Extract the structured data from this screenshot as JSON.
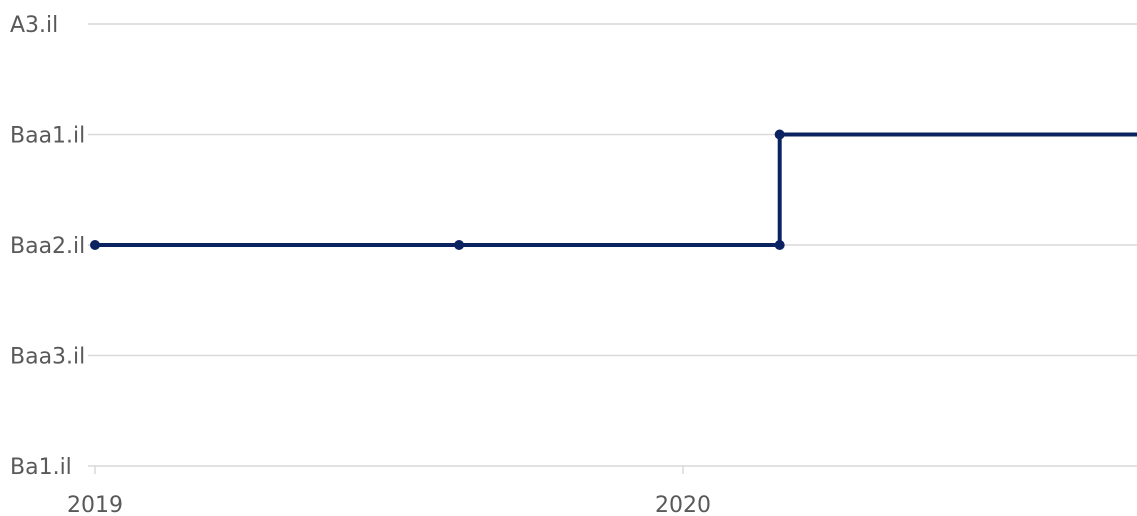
{
  "chart_data": {
    "type": "line",
    "step": true,
    "title": "",
    "xlabel": "",
    "ylabel": "",
    "x_axis_type": "date",
    "xlim": [
      "2019-01-01",
      "2020-11-01"
    ],
    "x_ticks": [
      {
        "value": "2019-01-01",
        "label": "2019"
      },
      {
        "value": "2020-01-01",
        "label": "2020"
      }
    ],
    "y_categories": [
      "Ba1.il",
      "Baa3.il",
      "Baa2.il",
      "Baa1.il",
      "A3.il"
    ],
    "grid": true,
    "legend": "none",
    "series": [
      {
        "color": "#0b2461",
        "points": [
          {
            "x": "2019-01-01",
            "y": "Baa2.il"
          },
          {
            "x": "2019-08-15",
            "y": "Baa2.il"
          },
          {
            "x": "2020-03-01",
            "y": "Baa2.il"
          },
          {
            "x": "2020-03-01",
            "y": "Baa1.il"
          },
          {
            "x": "2020-11-01",
            "y": "Baa1.il",
            "marker": false
          }
        ]
      }
    ]
  }
}
